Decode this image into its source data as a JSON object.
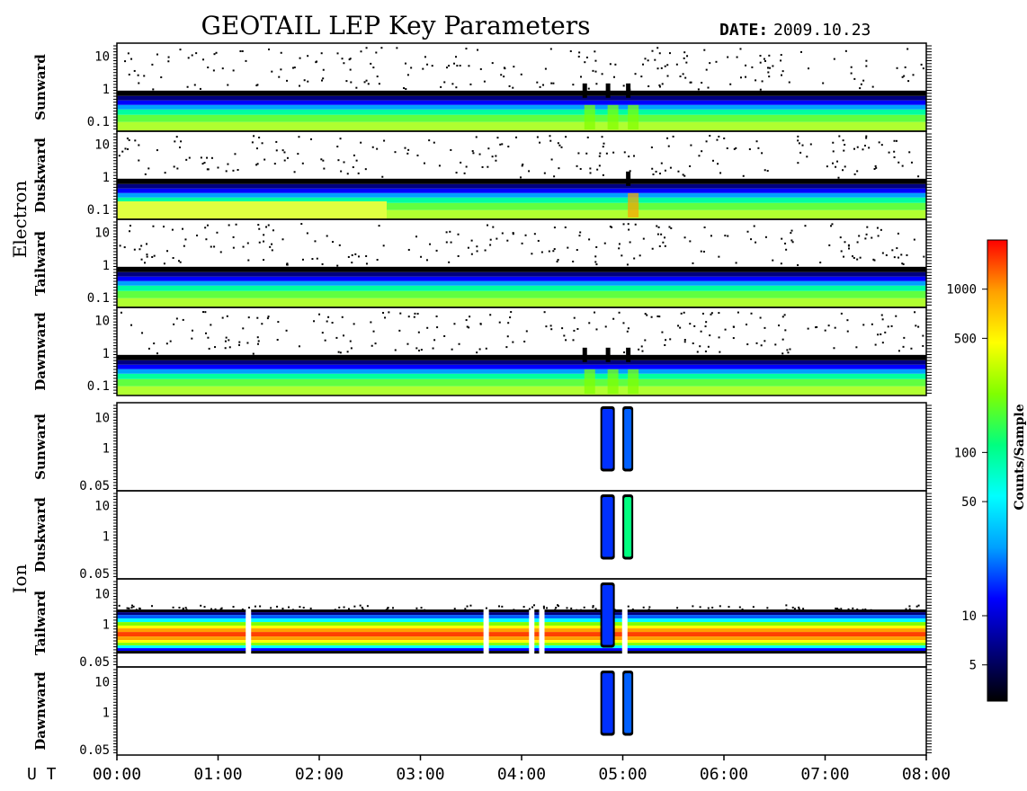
{
  "title": "GEOTAIL LEP Key Parameters",
  "date_label": "DATE:",
  "date_value": "2009.10.23",
  "chart_data": {
    "type": "heatmap",
    "x_axis": {
      "label": "U T",
      "ticks": [
        "00:00",
        "01:00",
        "02:00",
        "03:00",
        "04:00",
        "05:00",
        "06:00",
        "07:00",
        "08:00"
      ],
      "range_hours": [
        0,
        8
      ]
    },
    "groups": [
      {
        "name": "Electron",
        "panels": [
          {
            "name": "Sunward",
            "yticks": [
              "10",
              "1",
              "0.1"
            ],
            "y_log_range": [
              0.05,
              25
            ]
          },
          {
            "name": "Duskward",
            "yticks": [
              "10",
              "1",
              "0.1"
            ],
            "y_log_range": [
              0.05,
              25
            ]
          },
          {
            "name": "Tailward",
            "yticks": [
              "10",
              "1",
              "0.1"
            ],
            "y_log_range": [
              0.05,
              25
            ]
          },
          {
            "name": "Dawnward",
            "yticks": [
              "10",
              "1",
              "0.1"
            ],
            "y_log_range": [
              0.05,
              25
            ]
          }
        ]
      },
      {
        "name": "Ion",
        "panels": [
          {
            "name": "Sunward",
            "yticks": [
              "10",
              "1",
              "0.05"
            ],
            "y_log_range": [
              0.04,
              30
            ]
          },
          {
            "name": "Duskward",
            "yticks": [
              "10",
              "1",
              "0.05"
            ],
            "y_log_range": [
              0.04,
              30
            ]
          },
          {
            "name": "Tailward",
            "yticks": [
              "10",
              "1",
              "0.05"
            ],
            "y_log_range": [
              0.04,
              30
            ]
          },
          {
            "name": "Dawnward",
            "yticks": [
              "10",
              "1",
              "0.05"
            ],
            "y_log_range": [
              0.04,
              30
            ]
          }
        ]
      }
    ],
    "colorbar": {
      "label": "Counts/Sample",
      "scale": "log",
      "range": [
        3,
        2000
      ],
      "ticks": [
        "5",
        "10",
        "50",
        "100",
        "500",
        "1000"
      ],
      "colors": [
        "#000000",
        "#000080",
        "#0000ff",
        "#00a0ff",
        "#00ffff",
        "#00ff80",
        "#80ff00",
        "#ffff00",
        "#ffa000",
        "#ff0000"
      ]
    },
    "events_ut_hours": [
      4.62,
      4.85,
      5.05
    ],
    "data_gaps_ut_hours": [
      1.3,
      3.65,
      4.1,
      4.2,
      5.02
    ]
  }
}
